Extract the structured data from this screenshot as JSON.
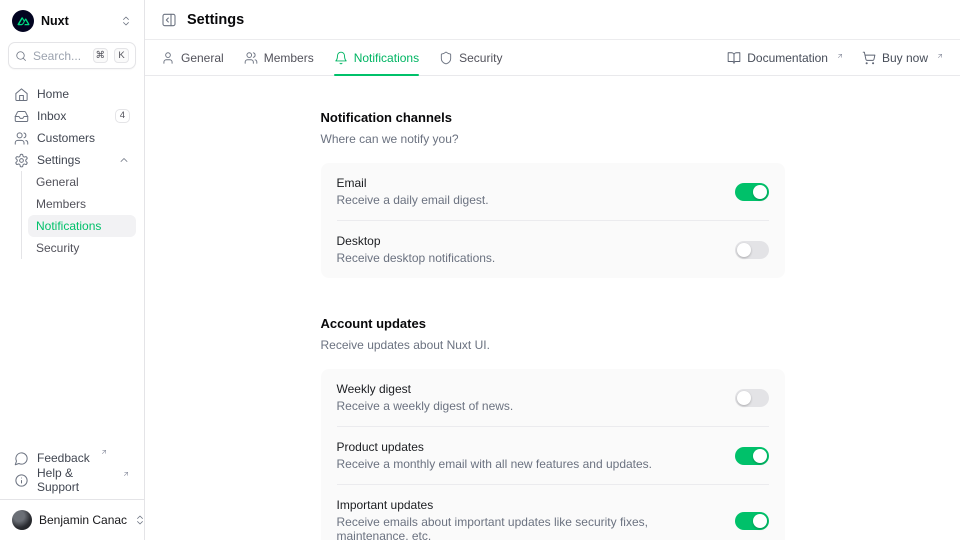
{
  "colors": {
    "primary": "#00c16a",
    "logo_green": "#00dc82",
    "logo_bg": "#020420",
    "card_bg": "#fafafa"
  },
  "sidebar": {
    "workspace_name": "Nuxt",
    "search": {
      "placeholder": "Search...",
      "kbd": [
        "⌘",
        "K"
      ]
    },
    "items": [
      {
        "label": "Home",
        "icon": "home"
      },
      {
        "label": "Inbox",
        "icon": "inbox",
        "badge": "4"
      },
      {
        "label": "Customers",
        "icon": "users"
      },
      {
        "label": "Settings",
        "icon": "gear",
        "expanded": true
      }
    ],
    "settings_children": [
      {
        "label": "General",
        "active": false
      },
      {
        "label": "Members",
        "active": false
      },
      {
        "label": "Notifications",
        "active": true
      },
      {
        "label": "Security",
        "active": false
      }
    ],
    "footer_links": [
      {
        "label": "Feedback",
        "icon": "message-bubble",
        "external": true
      },
      {
        "label": "Help & Support",
        "icon": "info-circle",
        "external": true
      }
    ],
    "user": {
      "name": "Benjamin Canac"
    }
  },
  "header": {
    "title": "Settings",
    "tabs": [
      {
        "label": "General",
        "icon": "user",
        "active": false
      },
      {
        "label": "Members",
        "icon": "users",
        "active": false
      },
      {
        "label": "Notifications",
        "icon": "bell",
        "active": true
      },
      {
        "label": "Security",
        "icon": "shield",
        "active": false
      }
    ],
    "actions": [
      {
        "label": "Documentation",
        "icon": "book-open",
        "external": true
      },
      {
        "label": "Buy now",
        "icon": "cart",
        "external": true
      }
    ]
  },
  "main": {
    "sections": [
      {
        "title": "Notification channels",
        "description": "Where can we notify you?",
        "rows": [
          {
            "label": "Email",
            "description": "Receive a daily email digest.",
            "enabled": true
          },
          {
            "label": "Desktop",
            "description": "Receive desktop notifications.",
            "enabled": false
          }
        ]
      },
      {
        "title": "Account updates",
        "description": "Receive updates about Nuxt UI.",
        "rows": [
          {
            "label": "Weekly digest",
            "description": "Receive a weekly digest of news.",
            "enabled": false
          },
          {
            "label": "Product updates",
            "description": "Receive a monthly email with all new features and updates.",
            "enabled": true
          },
          {
            "label": "Important updates",
            "description": "Receive emails about important updates like security fixes, maintenance, etc.",
            "enabled": true
          }
        ]
      }
    ]
  }
}
